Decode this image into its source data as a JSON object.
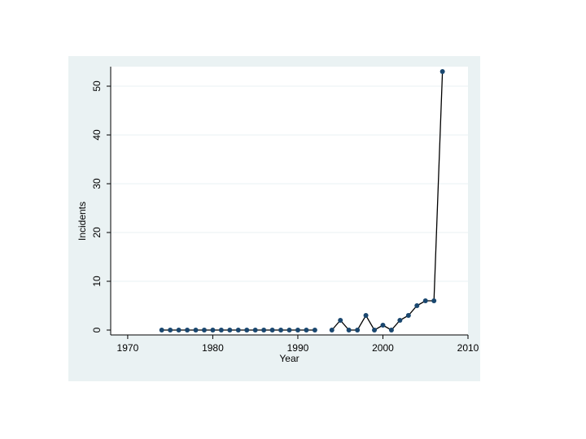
{
  "colors": {
    "outer_background": "#eaf2f3",
    "plot_background": "#ffffff",
    "grid": "#eaf2f3",
    "line": "#000000",
    "marker": "#1a476f"
  },
  "chart_data": {
    "type": "line",
    "xlabel": "Year",
    "ylabel": "Incidents",
    "xlim": [
      1968,
      2010
    ],
    "ylim": [
      -1,
      54
    ],
    "xticks": [
      1970,
      1980,
      1990,
      2000,
      2010
    ],
    "yticks": [
      0,
      10,
      20,
      30,
      40,
      50
    ],
    "grid": "horizontal",
    "legend": "none",
    "segments": [
      {
        "x": [
          1974,
          1975,
          1976,
          1977,
          1978,
          1979,
          1980,
          1981,
          1982,
          1983,
          1984,
          1985,
          1986,
          1987,
          1988,
          1989,
          1990,
          1991,
          1992
        ],
        "y": [
          0,
          0,
          0,
          0,
          0,
          0,
          0,
          0,
          0,
          0,
          0,
          0,
          0,
          0,
          0,
          0,
          0,
          0,
          0
        ]
      },
      {
        "x": [
          1994,
          1995,
          1996,
          1997,
          1998,
          1999,
          2000,
          2001,
          2002,
          2003,
          2004,
          2005,
          2006,
          2007
        ],
        "y": [
          0,
          2,
          0,
          0,
          3,
          0,
          1,
          0,
          2,
          3,
          5,
          6,
          6,
          53
        ]
      }
    ]
  }
}
